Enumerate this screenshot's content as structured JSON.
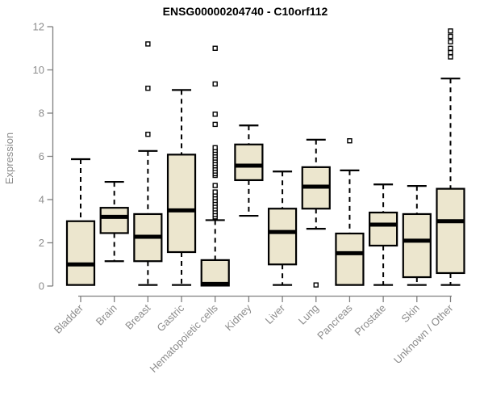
{
  "header": {
    "title": "ENSG00000204740 - C10orf112"
  },
  "chart_data": {
    "type": "boxplot",
    "title": "ENSG00000204740 - C10orf112",
    "xlabel": "",
    "ylabel": "Expression",
    "ylim": [
      0,
      12
    ],
    "y_ticks": [
      0,
      2,
      4,
      6,
      8,
      10,
      12
    ],
    "grid": false,
    "legend": "none",
    "categories": [
      "Bladder",
      "Brain",
      "Breast",
      "Gastric",
      "Hematopoietic cells",
      "Kidney",
      "Liver",
      "Lung",
      "Pancreas",
      "Prostate",
      "Skin",
      "Unknown / Other"
    ],
    "series": [
      {
        "category": "Bladder",
        "low": 0.05,
        "q1": 0.05,
        "median": 1.0,
        "q3": 3.0,
        "high": 5.87,
        "outliers": []
      },
      {
        "category": "Brain",
        "low": 1.15,
        "q1": 2.45,
        "median": 3.2,
        "q3": 3.62,
        "high": 4.82,
        "outliers": []
      },
      {
        "category": "Breast",
        "low": 0.05,
        "q1": 1.15,
        "median": 2.28,
        "q3": 3.33,
        "high": 6.25,
        "outliers": [
          7.02,
          9.15,
          11.2
        ]
      },
      {
        "category": "Gastric",
        "low": 0.05,
        "q1": 1.57,
        "median": 3.5,
        "q3": 6.08,
        "high": 9.07,
        "outliers": []
      },
      {
        "category": "Hematopoietic cells",
        "low": 0.02,
        "q1": 0.02,
        "median": 0.1,
        "q3": 1.2,
        "high": 3.05,
        "outliers": [
          3.2,
          3.31,
          3.44,
          3.57,
          3.7,
          3.83,
          3.96,
          4.09,
          4.22,
          4.35,
          4.65,
          5.12,
          5.2,
          5.32,
          5.44,
          5.56,
          5.68,
          5.8,
          5.92,
          6.04,
          6.16,
          6.28,
          6.4,
          7.48,
          7.95,
          9.35,
          11.0
        ]
      },
      {
        "category": "Kidney",
        "low": 3.25,
        "q1": 4.9,
        "median": 5.57,
        "q3": 6.55,
        "high": 7.43,
        "outliers": []
      },
      {
        "category": "Liver",
        "low": 0.05,
        "q1": 1.0,
        "median": 2.5,
        "q3": 3.58,
        "high": 5.3,
        "outliers": []
      },
      {
        "category": "Lung",
        "low": 2.65,
        "q1": 3.58,
        "median": 4.6,
        "q3": 5.5,
        "high": 6.77,
        "outliers": [
          0.05
        ]
      },
      {
        "category": "Pancreas",
        "low": 0.05,
        "q1": 0.05,
        "median": 1.52,
        "q3": 2.43,
        "high": 5.35,
        "outliers": [
          6.72
        ]
      },
      {
        "category": "Prostate",
        "low": 0.05,
        "q1": 1.87,
        "median": 2.84,
        "q3": 3.4,
        "high": 4.7,
        "outliers": []
      },
      {
        "category": "Skin",
        "low": 0.05,
        "q1": 0.41,
        "median": 2.1,
        "q3": 3.33,
        "high": 4.63,
        "outliers": []
      },
      {
        "category": "Unknown / Other",
        "low": 0.05,
        "q1": 0.6,
        "median": 3.0,
        "q3": 4.5,
        "high": 9.6,
        "outliers": [
          10.6,
          10.8,
          11.0,
          11.3,
          11.55,
          11.8
        ]
      }
    ],
    "colors": {
      "box_fill": "#ECE6CE",
      "box_border": "#000000",
      "whisker": "#000000",
      "outlier_fill": "#FFFFFF",
      "axis": "#7F7F7F",
      "tick_label": "#8C8C8C",
      "title": "#000000",
      "background": "#FFFFFF"
    }
  }
}
